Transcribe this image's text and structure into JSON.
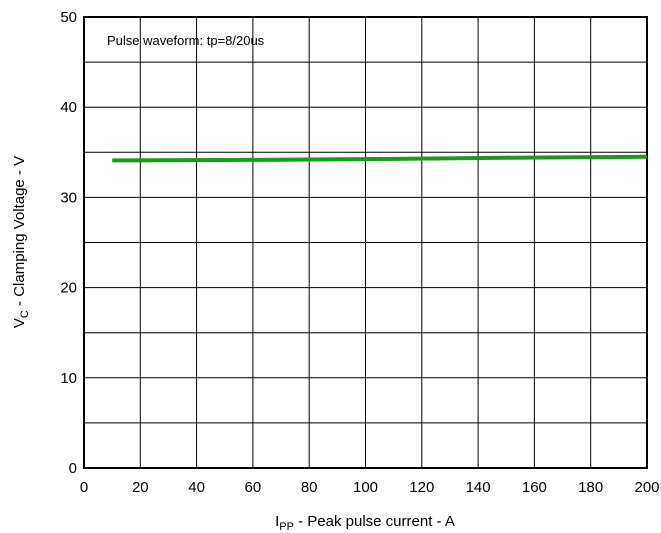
{
  "chart_data": {
    "type": "line",
    "annotation": "Pulse waveform: tp=8/20us",
    "xlabel": {
      "main": "I",
      "sub": "PP",
      "rest": " - Peak pulse current - A"
    },
    "ylabel": {
      "main": "V",
      "sub": "C",
      "rest": " - Clamping Voltage - V"
    },
    "xlim": [
      0,
      200
    ],
    "ylim": [
      0,
      50
    ],
    "x_ticks": [
      0,
      20,
      40,
      60,
      80,
      100,
      120,
      140,
      160,
      180,
      200
    ],
    "y_ticks": [
      0,
      10,
      20,
      30,
      40,
      50
    ],
    "grid": true,
    "series": [
      {
        "color": "#1a9a1a",
        "x": [
          10,
          50,
          100,
          150,
          200
        ],
        "y": [
          34.1,
          34.15,
          34.25,
          34.4,
          34.5
        ]
      }
    ]
  }
}
